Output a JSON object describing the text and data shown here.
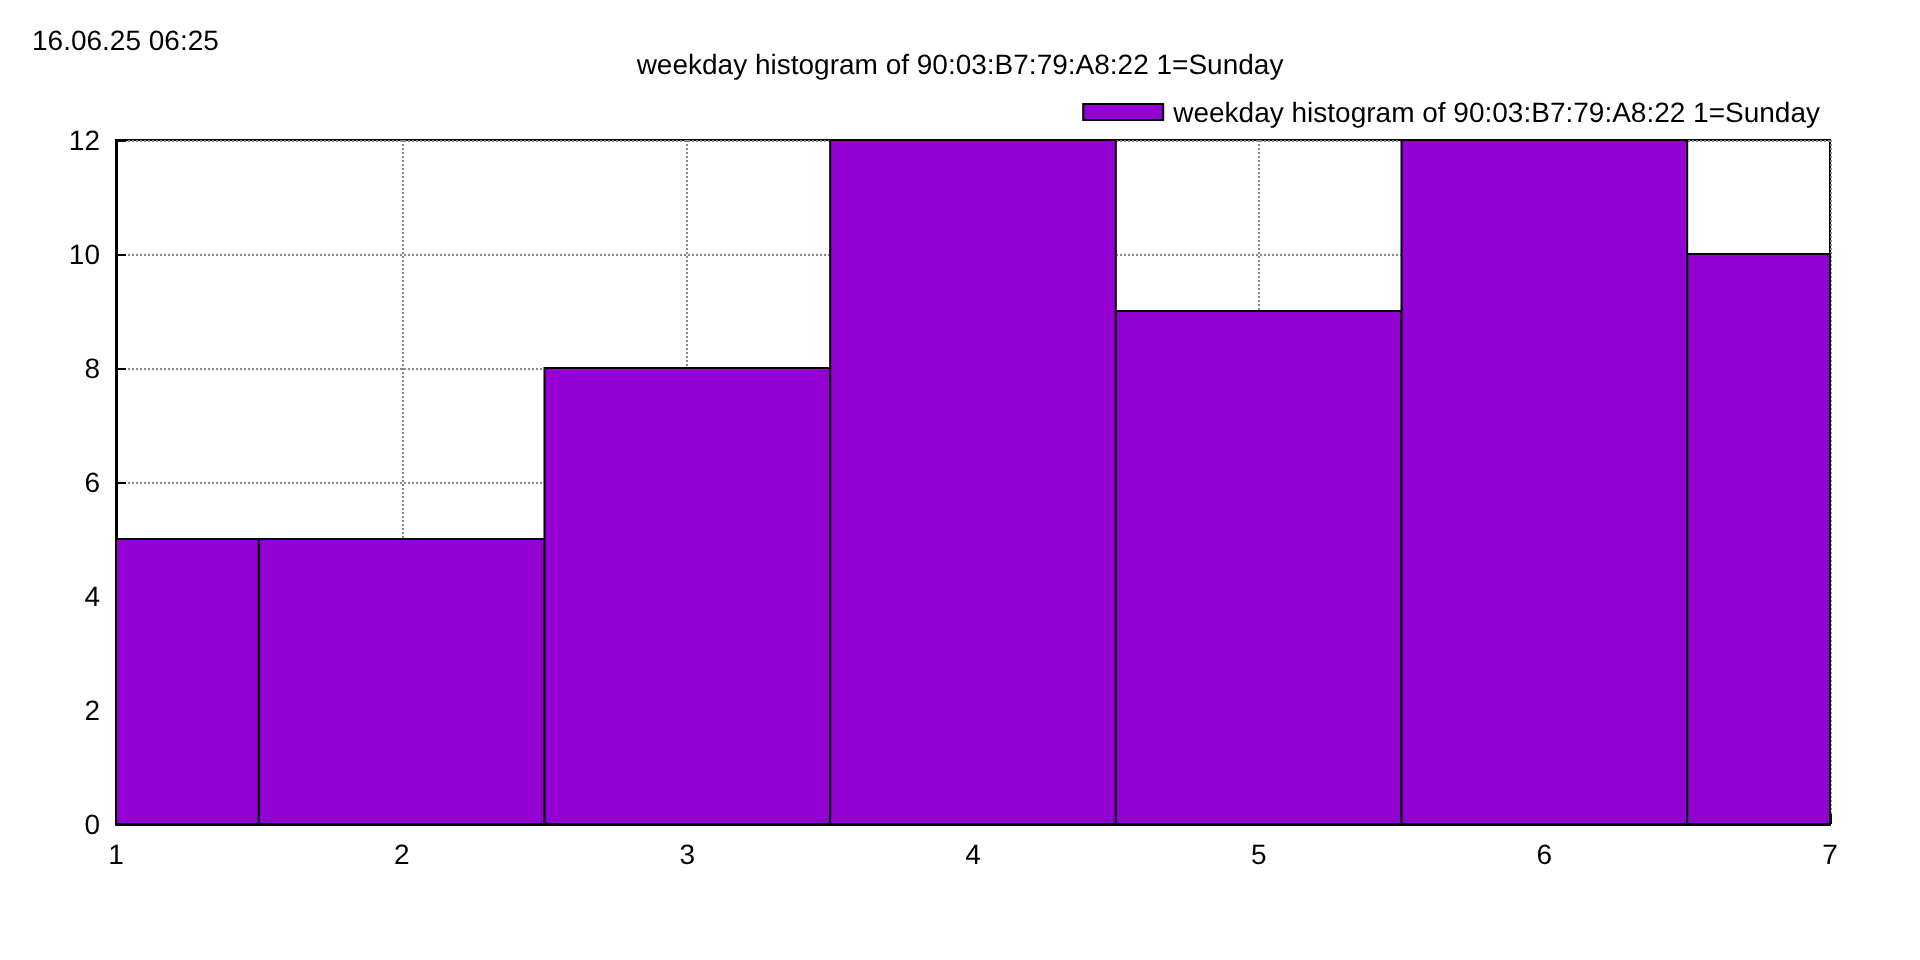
{
  "chart_data": {
    "type": "histogram",
    "title": "weekday histogram of 90:03:B7:79:A8:22 1=Sunday",
    "annotations": [
      "16.06.25 06:25"
    ],
    "bins": [
      1,
      1.5,
      2.5,
      3.5,
      4.5,
      5.5,
      6.5,
      7
    ],
    "series": [
      {
        "name": "weekday histogram of 90:03:B7:79:A8:22 1=Sunday",
        "color": "#9400d3",
        "values": [
          5,
          5,
          8,
          12,
          9,
          12,
          10
        ]
      }
    ],
    "xlim": [
      1,
      7
    ],
    "xticks": [
      1,
      2,
      3,
      4,
      5,
      6,
      7
    ],
    "ylim": [
      0,
      12
    ],
    "yticks": [
      0,
      2,
      4,
      6,
      8,
      10,
      12
    ],
    "grid": true,
    "legend": "top right"
  }
}
